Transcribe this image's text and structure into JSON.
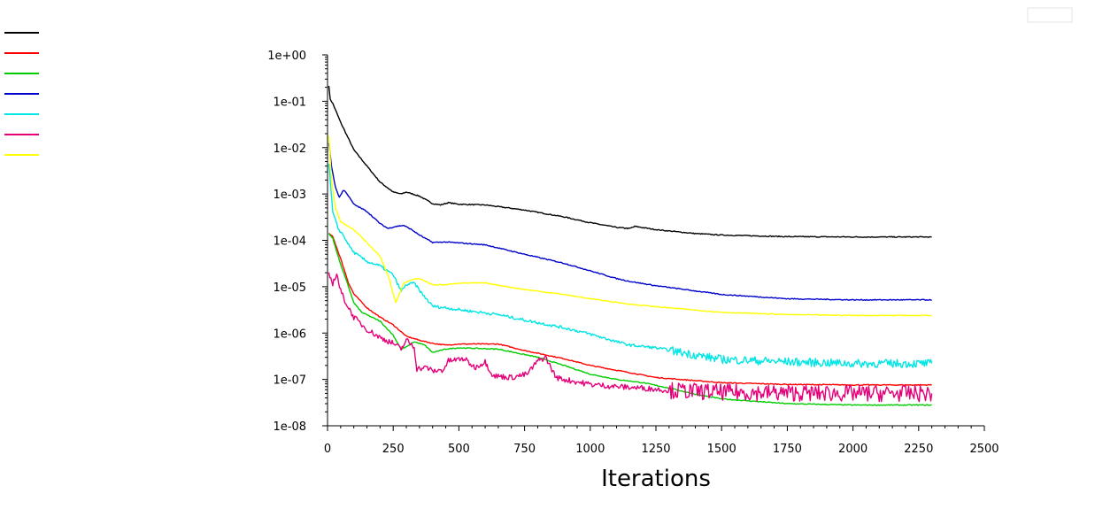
{
  "chart_data": {
    "type": "line",
    "xlabel": "Iterations",
    "ylabel": "",
    "xlim": [
      0,
      2500
    ],
    "ylim_log10": [
      -8,
      0
    ],
    "yscale": "log",
    "x_ticks": [
      0,
      250,
      500,
      750,
      1000,
      1250,
      1500,
      1750,
      2000,
      2250,
      2500
    ],
    "y_ticks": [
      "1e+00",
      "1e-01",
      "1e-02",
      "1e-03",
      "1e-04",
      "1e-05",
      "1e-06",
      "1e-07",
      "1e-08"
    ],
    "grid": false,
    "legend_position": "top-left",
    "series": [
      {
        "color": "#000000",
        "noise": 0.01,
        "points": [
          [
            5,
            0.22
          ],
          [
            10,
            0.11
          ],
          [
            20,
            0.09
          ],
          [
            50,
            0.035
          ],
          [
            100,
            0.009
          ],
          [
            150,
            0.004
          ],
          [
            200,
            0.0018
          ],
          [
            250,
            0.0011
          ],
          [
            280,
            0.001
          ],
          [
            300,
            0.0011
          ],
          [
            350,
            0.0009
          ],
          [
            400,
            0.00062
          ],
          [
            430,
            0.00058
          ],
          [
            460,
            0.00065
          ],
          [
            500,
            0.0006
          ],
          [
            600,
            0.00058
          ],
          [
            750,
            0.00045
          ],
          [
            900,
            0.00032
          ],
          [
            1000,
            0.00024
          ],
          [
            1100,
            0.00019
          ],
          [
            1150,
            0.00018
          ],
          [
            1170,
            0.0002
          ],
          [
            1250,
            0.00017
          ],
          [
            1400,
            0.00014
          ],
          [
            1500,
            0.00013
          ],
          [
            1750,
            0.00012
          ],
          [
            2000,
            0.000118
          ],
          [
            2300,
            0.000118
          ]
        ]
      },
      {
        "color": "#ff0000",
        "noise": 0.01,
        "points": [
          [
            5,
            0.00014
          ],
          [
            20,
            0.00012
          ],
          [
            50,
            4e-05
          ],
          [
            80,
            1.2e-05
          ],
          [
            100,
            7e-06
          ],
          [
            150,
            3.5e-06
          ],
          [
            200,
            2.2e-06
          ],
          [
            250,
            1.5e-06
          ],
          [
            300,
            8.5e-07
          ],
          [
            350,
            7e-07
          ],
          [
            400,
            6e-07
          ],
          [
            450,
            5.5e-07
          ],
          [
            500,
            5.8e-07
          ],
          [
            650,
            5.8e-07
          ],
          [
            750,
            4.2e-07
          ],
          [
            900,
            2.8e-07
          ],
          [
            1000,
            2e-07
          ],
          [
            1150,
            1.4e-07
          ],
          [
            1250,
            1.1e-07
          ],
          [
            1500,
            8.5e-08
          ],
          [
            1750,
            7.8e-08
          ],
          [
            2000,
            7.6e-08
          ],
          [
            2300,
            7.6e-08
          ]
        ]
      },
      {
        "color": "#00cc00",
        "noise": 0.01,
        "points": [
          [
            5,
            0.00014
          ],
          [
            20,
            0.00011
          ],
          [
            50,
            3e-05
          ],
          [
            80,
            1e-05
          ],
          [
            100,
            4.5e-06
          ],
          [
            130,
            2.8e-06
          ],
          [
            200,
            1.8e-06
          ],
          [
            250,
            9e-07
          ],
          [
            280,
            4.5e-07
          ],
          [
            300,
            5e-07
          ],
          [
            330,
            6.5e-07
          ],
          [
            370,
            5.5e-07
          ],
          [
            400,
            3.8e-07
          ],
          [
            450,
            4.5e-07
          ],
          [
            500,
            4.8e-07
          ],
          [
            650,
            4.5e-07
          ],
          [
            800,
            3e-07
          ],
          [
            900,
            2e-07
          ],
          [
            1000,
            1.3e-07
          ],
          [
            1100,
            1e-07
          ],
          [
            1200,
            8.5e-08
          ],
          [
            1300,
            6.5e-08
          ],
          [
            1400,
            4.8e-08
          ],
          [
            1500,
            3.8e-08
          ],
          [
            1750,
            3e-08
          ],
          [
            2000,
            2.8e-08
          ],
          [
            2300,
            2.8e-08
          ]
        ]
      },
      {
        "color": "#0000cc",
        "noise": 0.01,
        "points": [
          [
            5,
            0.0125
          ],
          [
            15,
            0.004
          ],
          [
            30,
            0.0014
          ],
          [
            45,
            0.00085
          ],
          [
            60,
            0.0012
          ],
          [
            70,
            0.0011
          ],
          [
            100,
            0.0006
          ],
          [
            150,
            0.00042
          ],
          [
            200,
            0.00023
          ],
          [
            230,
            0.00018
          ],
          [
            260,
            0.0002
          ],
          [
            290,
            0.00021
          ],
          [
            320,
            0.00017
          ],
          [
            350,
            0.00013
          ],
          [
            400,
            9e-05
          ],
          [
            450,
            9.2e-05
          ],
          [
            500,
            8.8e-05
          ],
          [
            600,
            8e-05
          ],
          [
            750,
            5e-05
          ],
          [
            900,
            3.2e-05
          ],
          [
            1000,
            2.2e-05
          ],
          [
            1100,
            1.5e-05
          ],
          [
            1150,
            1.3e-05
          ],
          [
            1250,
            1.05e-05
          ],
          [
            1500,
            6.8e-06
          ],
          [
            1750,
            5.5e-06
          ],
          [
            2000,
            5.2e-06
          ],
          [
            2300,
            5.2e-06
          ]
        ]
      },
      {
        "color": "#00e5e5",
        "noise": 0.03,
        "points": [
          [
            5,
            0.0045
          ],
          [
            20,
            0.0004
          ],
          [
            40,
            0.00018
          ],
          [
            60,
            0.00013
          ],
          [
            80,
            8e-05
          ],
          [
            100,
            5.5e-05
          ],
          [
            150,
            3.5e-05
          ],
          [
            200,
            2.8e-05
          ],
          [
            250,
            1.8e-05
          ],
          [
            280,
            8e-06
          ],
          [
            300,
            1.1e-05
          ],
          [
            330,
            1.2e-05
          ],
          [
            360,
            7e-06
          ],
          [
            400,
            3.8e-06
          ],
          [
            500,
            3.2e-06
          ],
          [
            650,
            2.5e-06
          ],
          [
            750,
            1.9e-06
          ],
          [
            900,
            1.3e-06
          ],
          [
            1000,
            9.5e-07
          ],
          [
            1100,
            6.5e-07
          ],
          [
            1150,
            5.5e-07
          ],
          [
            1250,
            4.8e-07
          ],
          [
            1350,
            3.8e-07
          ],
          [
            1450,
            3e-07
          ],
          [
            1500,
            2.7e-07
          ],
          [
            1750,
            2.4e-07
          ],
          [
            2000,
            2.2e-07
          ],
          [
            2300,
            2.2e-07
          ]
        ]
      },
      {
        "color": "#e5007a",
        "noise": 0.06,
        "points": [
          [
            5,
            1.8e-05
          ],
          [
            20,
            1.2e-05
          ],
          [
            35,
            1.9e-05
          ],
          [
            50,
            8e-06
          ],
          [
            70,
            4.5e-06
          ],
          [
            100,
            2.2e-06
          ],
          [
            150,
            1.2e-06
          ],
          [
            200,
            8e-07
          ],
          [
            250,
            6e-07
          ],
          [
            280,
            4.5e-07
          ],
          [
            300,
            7e-07
          ],
          [
            330,
            5e-07
          ],
          [
            340,
            1.7e-07
          ],
          [
            380,
            1.8e-07
          ],
          [
            400,
            1.5e-07
          ],
          [
            440,
            1.6e-07
          ],
          [
            460,
            2.5e-07
          ],
          [
            520,
            2.8e-07
          ],
          [
            560,
            1.8e-07
          ],
          [
            600,
            2.4e-07
          ],
          [
            630,
            1.2e-07
          ],
          [
            700,
            1.1e-07
          ],
          [
            760,
            1.3e-07
          ],
          [
            800,
            2.5e-07
          ],
          [
            830,
            3e-07
          ],
          [
            870,
            1.1e-07
          ],
          [
            900,
            1e-07
          ],
          [
            1000,
            7.8e-08
          ],
          [
            1100,
            7e-08
          ],
          [
            1200,
            6.5e-08
          ],
          [
            1300,
            5.8e-08
          ],
          [
            1500,
            5.3e-08
          ],
          [
            1750,
            5.1e-08
          ],
          [
            2000,
            5e-08
          ],
          [
            2300,
            5e-08
          ]
        ]
      },
      {
        "color": "#ffff00",
        "noise": 0.01,
        "points": [
          [
            5,
            0.018
          ],
          [
            15,
            0.002
          ],
          [
            30,
            0.0005
          ],
          [
            50,
            0.00025
          ],
          [
            100,
            0.00017
          ],
          [
            150,
            9e-05
          ],
          [
            200,
            4.5e-05
          ],
          [
            230,
            1.8e-05
          ],
          [
            260,
            4.5e-06
          ],
          [
            290,
            1.2e-05
          ],
          [
            320,
            1.4e-05
          ],
          [
            350,
            1.5e-05
          ],
          [
            400,
            1.1e-05
          ],
          [
            450,
            1.1e-05
          ],
          [
            500,
            1.2e-05
          ],
          [
            600,
            1.2e-05
          ],
          [
            750,
            8.7e-06
          ],
          [
            900,
            6.8e-06
          ],
          [
            1000,
            5.5e-06
          ],
          [
            1150,
            4.2e-06
          ],
          [
            1250,
            3.7e-06
          ],
          [
            1500,
            2.8e-06
          ],
          [
            1750,
            2.5e-06
          ],
          [
            2000,
            2.4e-06
          ],
          [
            2300,
            2.4e-06
          ]
        ]
      }
    ]
  }
}
